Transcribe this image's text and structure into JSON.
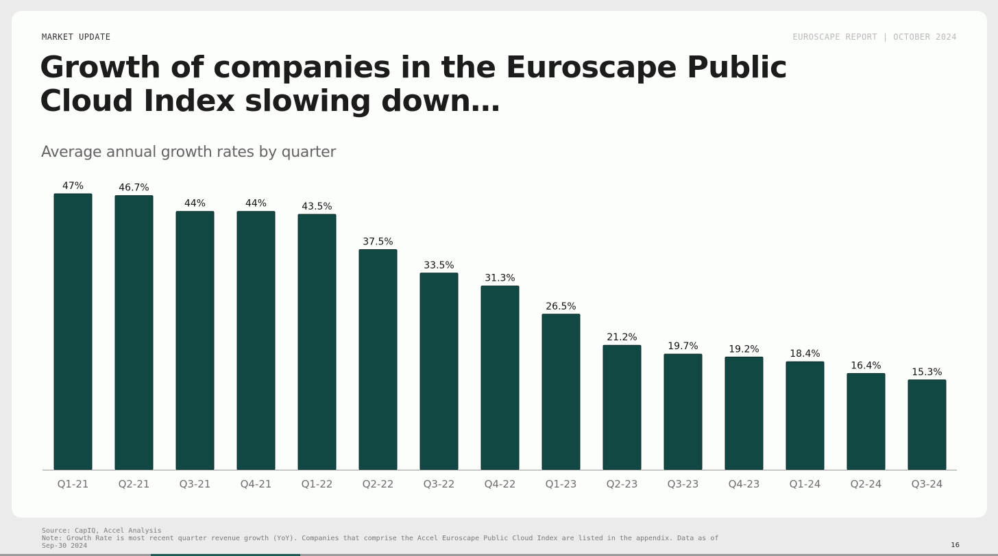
{
  "header": {
    "section_label": "MARKET UPDATE",
    "report_label": "EUROSCAPE REPORT | OCTOBER 2024",
    "title": "Growth of companies in the Euroscape Public Cloud Index slowing down…",
    "subtitle": "Average annual growth rates by quarter"
  },
  "chart_data": {
    "type": "bar",
    "title": "Average annual growth rates by quarter",
    "categories": [
      "Q1-21",
      "Q2-21",
      "Q3-21",
      "Q4-21",
      "Q1-22",
      "Q2-22",
      "Q3-22",
      "Q4-22",
      "Q1-23",
      "Q2-23",
      "Q3-23",
      "Q4-23",
      "Q1-24",
      "Q2-24",
      "Q3-24"
    ],
    "values": [
      47,
      46.7,
      44,
      44,
      43.5,
      37.5,
      33.5,
      31.3,
      26.5,
      21.2,
      19.7,
      19.2,
      18.4,
      16.4,
      15.3
    ],
    "data_labels": [
      "47%",
      "46.7%",
      "44%",
      "44%",
      "43.5%",
      "37.5%",
      "33.5%",
      "31.3%",
      "26.5%",
      "21.2%",
      "19.7%",
      "19.2%",
      "18.4%",
      "16.4%",
      "15.3%"
    ],
    "unit": "%",
    "xlabel": "",
    "ylabel": "",
    "ylim": [
      0,
      47
    ],
    "grid": false,
    "bar_color": "#124843"
  },
  "footer": {
    "source": "Source: CapIQ, Accel Analysis",
    "note_line1": "Note: Growth Rate is most recent quarter revenue growth (YoY). Companies that comprise the Accel Euroscape Public Cloud Index are listed in the appendix. Data as of",
    "note_line2": "Sep-30 2024",
    "page_number": "16"
  }
}
